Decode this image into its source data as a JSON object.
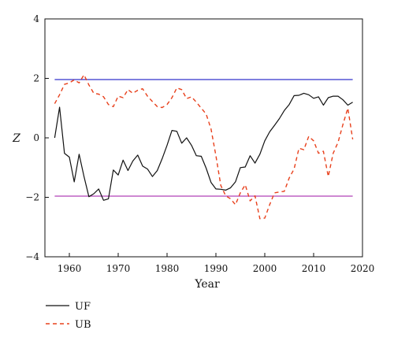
{
  "chart_data": {
    "type": "line",
    "xlabel": "Year",
    "ylabel": "Z",
    "xlim": [
      1955,
      2020
    ],
    "ylim": [
      -4,
      4
    ],
    "x_ticks": [
      1960,
      1970,
      1980,
      1990,
      2000,
      2010,
      2020
    ],
    "y_ticks": [
      -4,
      -2,
      0,
      2,
      4
    ],
    "x_tick_labels": [
      "1960",
      "1970",
      "1980",
      "1990",
      "2000",
      "2010",
      "2020"
    ],
    "y_tick_labels": [
      "−4",
      "−2",
      "0",
      "2",
      "4"
    ],
    "grid": false,
    "legend_placement": "below-left",
    "series": [
      {
        "name": "UF",
        "color": "#111111",
        "dash": "solid",
        "x": [
          1957,
          1958,
          1959,
          1960,
          1961,
          1962,
          1963,
          1964,
          1965,
          1966,
          1967,
          1968,
          1969,
          1970,
          1971,
          1972,
          1973,
          1974,
          1975,
          1976,
          1977,
          1978,
          1979,
          1980,
          1981,
          1982,
          1983,
          1984,
          1985,
          1986,
          1987,
          1988,
          1989,
          1990,
          1991,
          1992,
          1993,
          1994,
          1995,
          1996,
          1997,
          1998,
          1999,
          2000,
          2001,
          2002,
          2003,
          2004,
          2005,
          2006,
          2007,
          2008,
          2009,
          2010,
          2011,
          2012,
          2013,
          2014,
          2015,
          2016,
          2017,
          2018
        ],
        "y": [
          0.0,
          1.03,
          -0.52,
          -0.65,
          -1.48,
          -0.55,
          -1.3,
          -1.98,
          -1.88,
          -1.72,
          -2.1,
          -2.05,
          -1.08,
          -1.25,
          -0.75,
          -1.1,
          -0.78,
          -0.58,
          -0.95,
          -1.05,
          -1.3,
          -1.1,
          -0.7,
          -0.25,
          0.25,
          0.22,
          -0.18,
          0.0,
          -0.25,
          -0.6,
          -0.62,
          -1.02,
          -1.5,
          -1.72,
          -1.73,
          -1.76,
          -1.68,
          -1.48,
          -1.0,
          -0.98,
          -0.6,
          -0.85,
          -0.55,
          -0.1,
          0.2,
          0.42,
          0.65,
          0.92,
          1.12,
          1.42,
          1.43,
          1.5,
          1.45,
          1.33,
          1.38,
          1.1,
          1.35,
          1.4,
          1.4,
          1.28,
          1.1,
          1.2
        ]
      },
      {
        "name": "UB",
        "color": "#e8401c",
        "dash": "dashed",
        "x": [
          1957,
          1958,
          1959,
          1960,
          1961,
          1962,
          1963,
          1964,
          1965,
          1966,
          1967,
          1968,
          1969,
          1970,
          1971,
          1972,
          1973,
          1974,
          1975,
          1976,
          1977,
          1978,
          1979,
          1980,
          1981,
          1982,
          1983,
          1984,
          1985,
          1986,
          1987,
          1988,
          1989,
          1990,
          1991,
          1992,
          1993,
          1994,
          1995,
          1996,
          1997,
          1998,
          1999,
          2000,
          2001,
          2002,
          2003,
          2004,
          2005,
          2006,
          2007,
          2008,
          2009,
          2010,
          2011,
          2012,
          2013,
          2014,
          2015,
          2016,
          2017,
          2018
        ],
        "y": [
          1.15,
          1.45,
          1.8,
          1.85,
          1.95,
          1.85,
          2.12,
          1.78,
          1.5,
          1.47,
          1.38,
          1.12,
          1.05,
          1.4,
          1.35,
          1.62,
          1.5,
          1.6,
          1.65,
          1.4,
          1.22,
          1.05,
          1.02,
          1.12,
          1.35,
          1.68,
          1.62,
          1.32,
          1.38,
          1.2,
          1.0,
          0.8,
          0.3,
          -0.6,
          -1.6,
          -1.95,
          -2.05,
          -2.25,
          -1.85,
          -1.58,
          -2.12,
          -1.95,
          -2.72,
          -2.7,
          -2.25,
          -1.85,
          -1.82,
          -1.8,
          -1.35,
          -1.05,
          -0.35,
          -0.4,
          0.05,
          -0.1,
          -0.52,
          -0.45,
          -1.3,
          -0.52,
          -0.15,
          0.45,
          1.0,
          -0.05
        ]
      },
      {
        "color": "#3333cc",
        "dash": "solid",
        "x": [
          1957,
          2018
        ],
        "y": [
          1.96,
          1.96
        ]
      },
      {
        "color": "#b040b8",
        "dash": "solid",
        "x": [
          1957,
          2018
        ],
        "y": [
          -1.96,
          -1.96
        ]
      }
    ]
  },
  "legend": {
    "entries": [
      {
        "label": "UF",
        "color": "#111111",
        "dash": "solid"
      },
      {
        "label": "UB",
        "color": "#e8401c",
        "dash": "dashed"
      }
    ]
  }
}
